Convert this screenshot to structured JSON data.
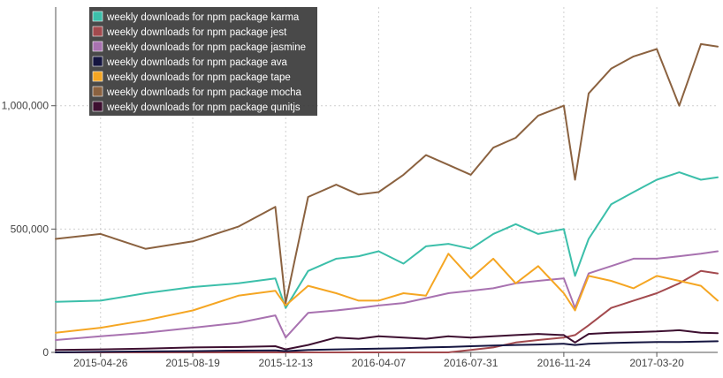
{
  "chart_data": {
    "type": "line",
    "x_ticks": [
      "2015-04-26",
      "2015-08-19",
      "2015-12-13",
      "2016-04-07",
      "2016-07-31",
      "2016-11-24",
      "2017-03-20"
    ],
    "y_ticks": [
      "0",
      "500,000",
      "1,000,000"
    ],
    "x_range": [
      "2015-03-01",
      "2017-06-04"
    ],
    "ylim": [
      0,
      1400000
    ],
    "grid": true,
    "legend_position": "top-left",
    "x": [
      "2015-03-01",
      "2015-04-26",
      "2015-06-21",
      "2015-08-19",
      "2015-10-15",
      "2015-11-30",
      "2015-12-13",
      "2016-01-10",
      "2016-02-14",
      "2016-03-13",
      "2016-04-07",
      "2016-05-08",
      "2016-06-05",
      "2016-07-03",
      "2016-07-31",
      "2016-08-28",
      "2016-09-25",
      "2016-10-23",
      "2016-11-24",
      "2016-12-08",
      "2016-12-25",
      "2017-01-22",
      "2017-02-19",
      "2017-03-20",
      "2017-04-17",
      "2017-05-14",
      "2017-06-04"
    ],
    "series": [
      {
        "name": "weekly downloads for npm package karma",
        "color": "#3cbfaa",
        "values": [
          205000,
          210000,
          240000,
          265000,
          280000,
          300000,
          180000,
          330000,
          380000,
          390000,
          410000,
          360000,
          430000,
          440000,
          420000,
          480000,
          520000,
          480000,
          500000,
          310000,
          460000,
          600000,
          650000,
          700000,
          730000,
          700000,
          710000
        ]
      },
      {
        "name": "weekly downloads for npm package jest",
        "color": "#a34a4e",
        "values": [
          0,
          0,
          0,
          0,
          0,
          0,
          0,
          0,
          0,
          0,
          0,
          0,
          0,
          0,
          10000,
          20000,
          40000,
          50000,
          60000,
          70000,
          110000,
          180000,
          210000,
          240000,
          280000,
          330000,
          320000
        ]
      },
      {
        "name": "weekly downloads for npm package jasmine",
        "color": "#a872b0",
        "values": [
          50000,
          65000,
          80000,
          100000,
          120000,
          150000,
          60000,
          160000,
          170000,
          180000,
          190000,
          200000,
          220000,
          240000,
          250000,
          260000,
          280000,
          290000,
          300000,
          180000,
          320000,
          350000,
          380000,
          380000,
          390000,
          400000,
          410000
        ]
      },
      {
        "name": "weekly downloads for npm package ava",
        "color": "#151540",
        "values": [
          0,
          2000,
          4000,
          5000,
          7000,
          8000,
          5000,
          10000,
          12000,
          14000,
          15000,
          17000,
          20000,
          22000,
          25000,
          28000,
          30000,
          32000,
          35000,
          30000,
          35000,
          38000,
          40000,
          42000,
          42000,
          44000,
          45000
        ]
      },
      {
        "name": "weekly downloads for npm package tape",
        "color": "#f5a623",
        "values": [
          80000,
          100000,
          130000,
          170000,
          230000,
          250000,
          190000,
          270000,
          240000,
          210000,
          210000,
          240000,
          230000,
          400000,
          300000,
          380000,
          280000,
          350000,
          240000,
          170000,
          310000,
          290000,
          260000,
          310000,
          290000,
          270000,
          210000
        ]
      },
      {
        "name": "weekly downloads for npm package mocha",
        "color": "#8b6240",
        "values": [
          460000,
          480000,
          420000,
          450000,
          510000,
          590000,
          200000,
          630000,
          680000,
          640000,
          650000,
          720000,
          800000,
          760000,
          720000,
          830000,
          870000,
          960000,
          1000000,
          700000,
          1050000,
          1150000,
          1200000,
          1230000,
          1000000,
          1250000,
          1240000
        ]
      },
      {
        "name": "weekly downloads for npm package qunitjs",
        "color": "#3d0f30",
        "values": [
          10000,
          12000,
          15000,
          20000,
          22000,
          25000,
          12000,
          30000,
          60000,
          55000,
          65000,
          60000,
          55000,
          65000,
          60000,
          65000,
          70000,
          75000,
          70000,
          40000,
          75000,
          80000,
          82000,
          85000,
          90000,
          80000,
          78000
        ]
      }
    ]
  }
}
